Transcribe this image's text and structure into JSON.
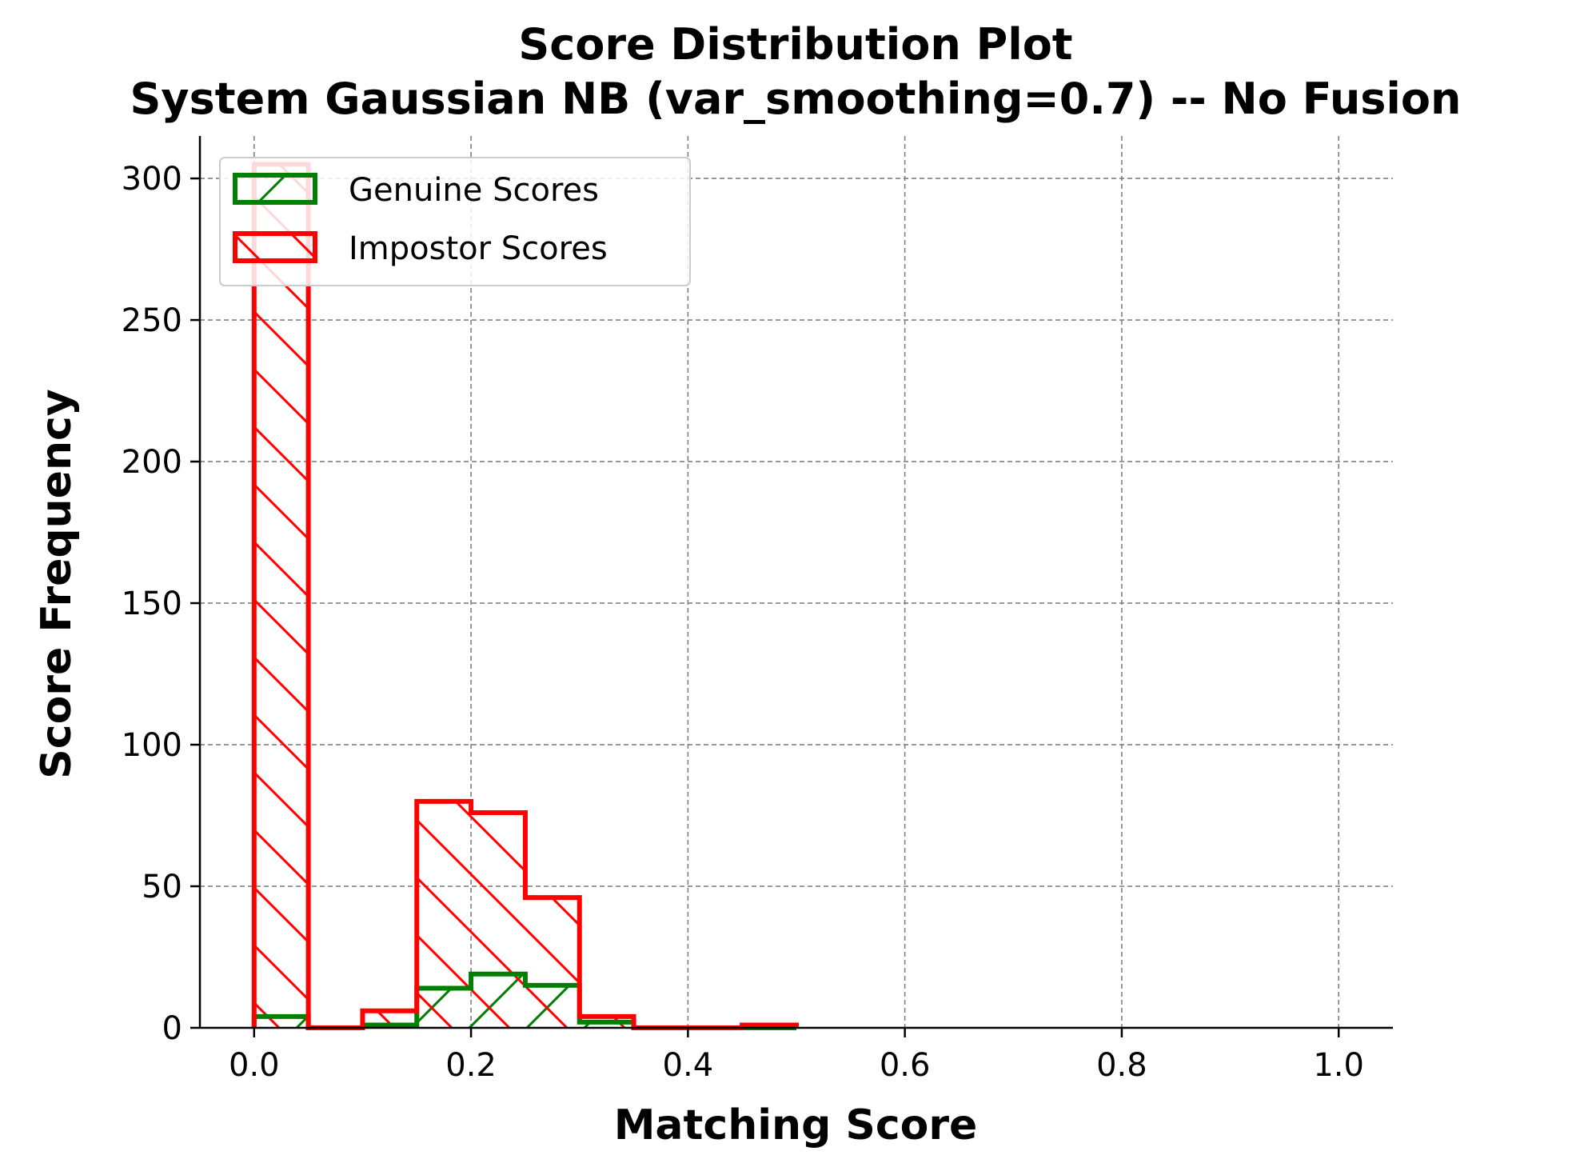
{
  "chart_data": {
    "type": "histogram",
    "title": "Score Distribution Plot",
    "subtitle": "System Gaussian NB (var_smoothing=0.7) -- No Fusion",
    "xlabel": "Matching Score",
    "ylabel": "Score Frequency",
    "xlim": [
      -0.05,
      1.05
    ],
    "ylim": [
      0,
      315
    ],
    "xticks": [
      0.0,
      0.2,
      0.4,
      0.6,
      0.8,
      1.0
    ],
    "xtick_labels": [
      "0.0",
      "0.2",
      "0.4",
      "0.6",
      "0.8",
      "1.0"
    ],
    "yticks": [
      0,
      50,
      100,
      150,
      200,
      250,
      300
    ],
    "ytick_labels": [
      "0",
      "50",
      "100",
      "150",
      "200",
      "250",
      "300"
    ],
    "grid": true,
    "grid_style": "dashed",
    "legend_position": "upper-left",
    "bin_edges": [
      0.0,
      0.05,
      0.1,
      0.15,
      0.2,
      0.25,
      0.3,
      0.35,
      0.4,
      0.45,
      0.5
    ],
    "series": [
      {
        "name": "Genuine Scores",
        "color": "#008000",
        "hatch": "forward-slash",
        "values": [
          4,
          0,
          1,
          14,
          19,
          15,
          2,
          0,
          0,
          0
        ]
      },
      {
        "name": "Impostor Scores",
        "color": "#ff0000",
        "hatch": "back-slash",
        "values": [
          305,
          0,
          6,
          80,
          76,
          46,
          4,
          0,
          0,
          1
        ]
      }
    ]
  }
}
